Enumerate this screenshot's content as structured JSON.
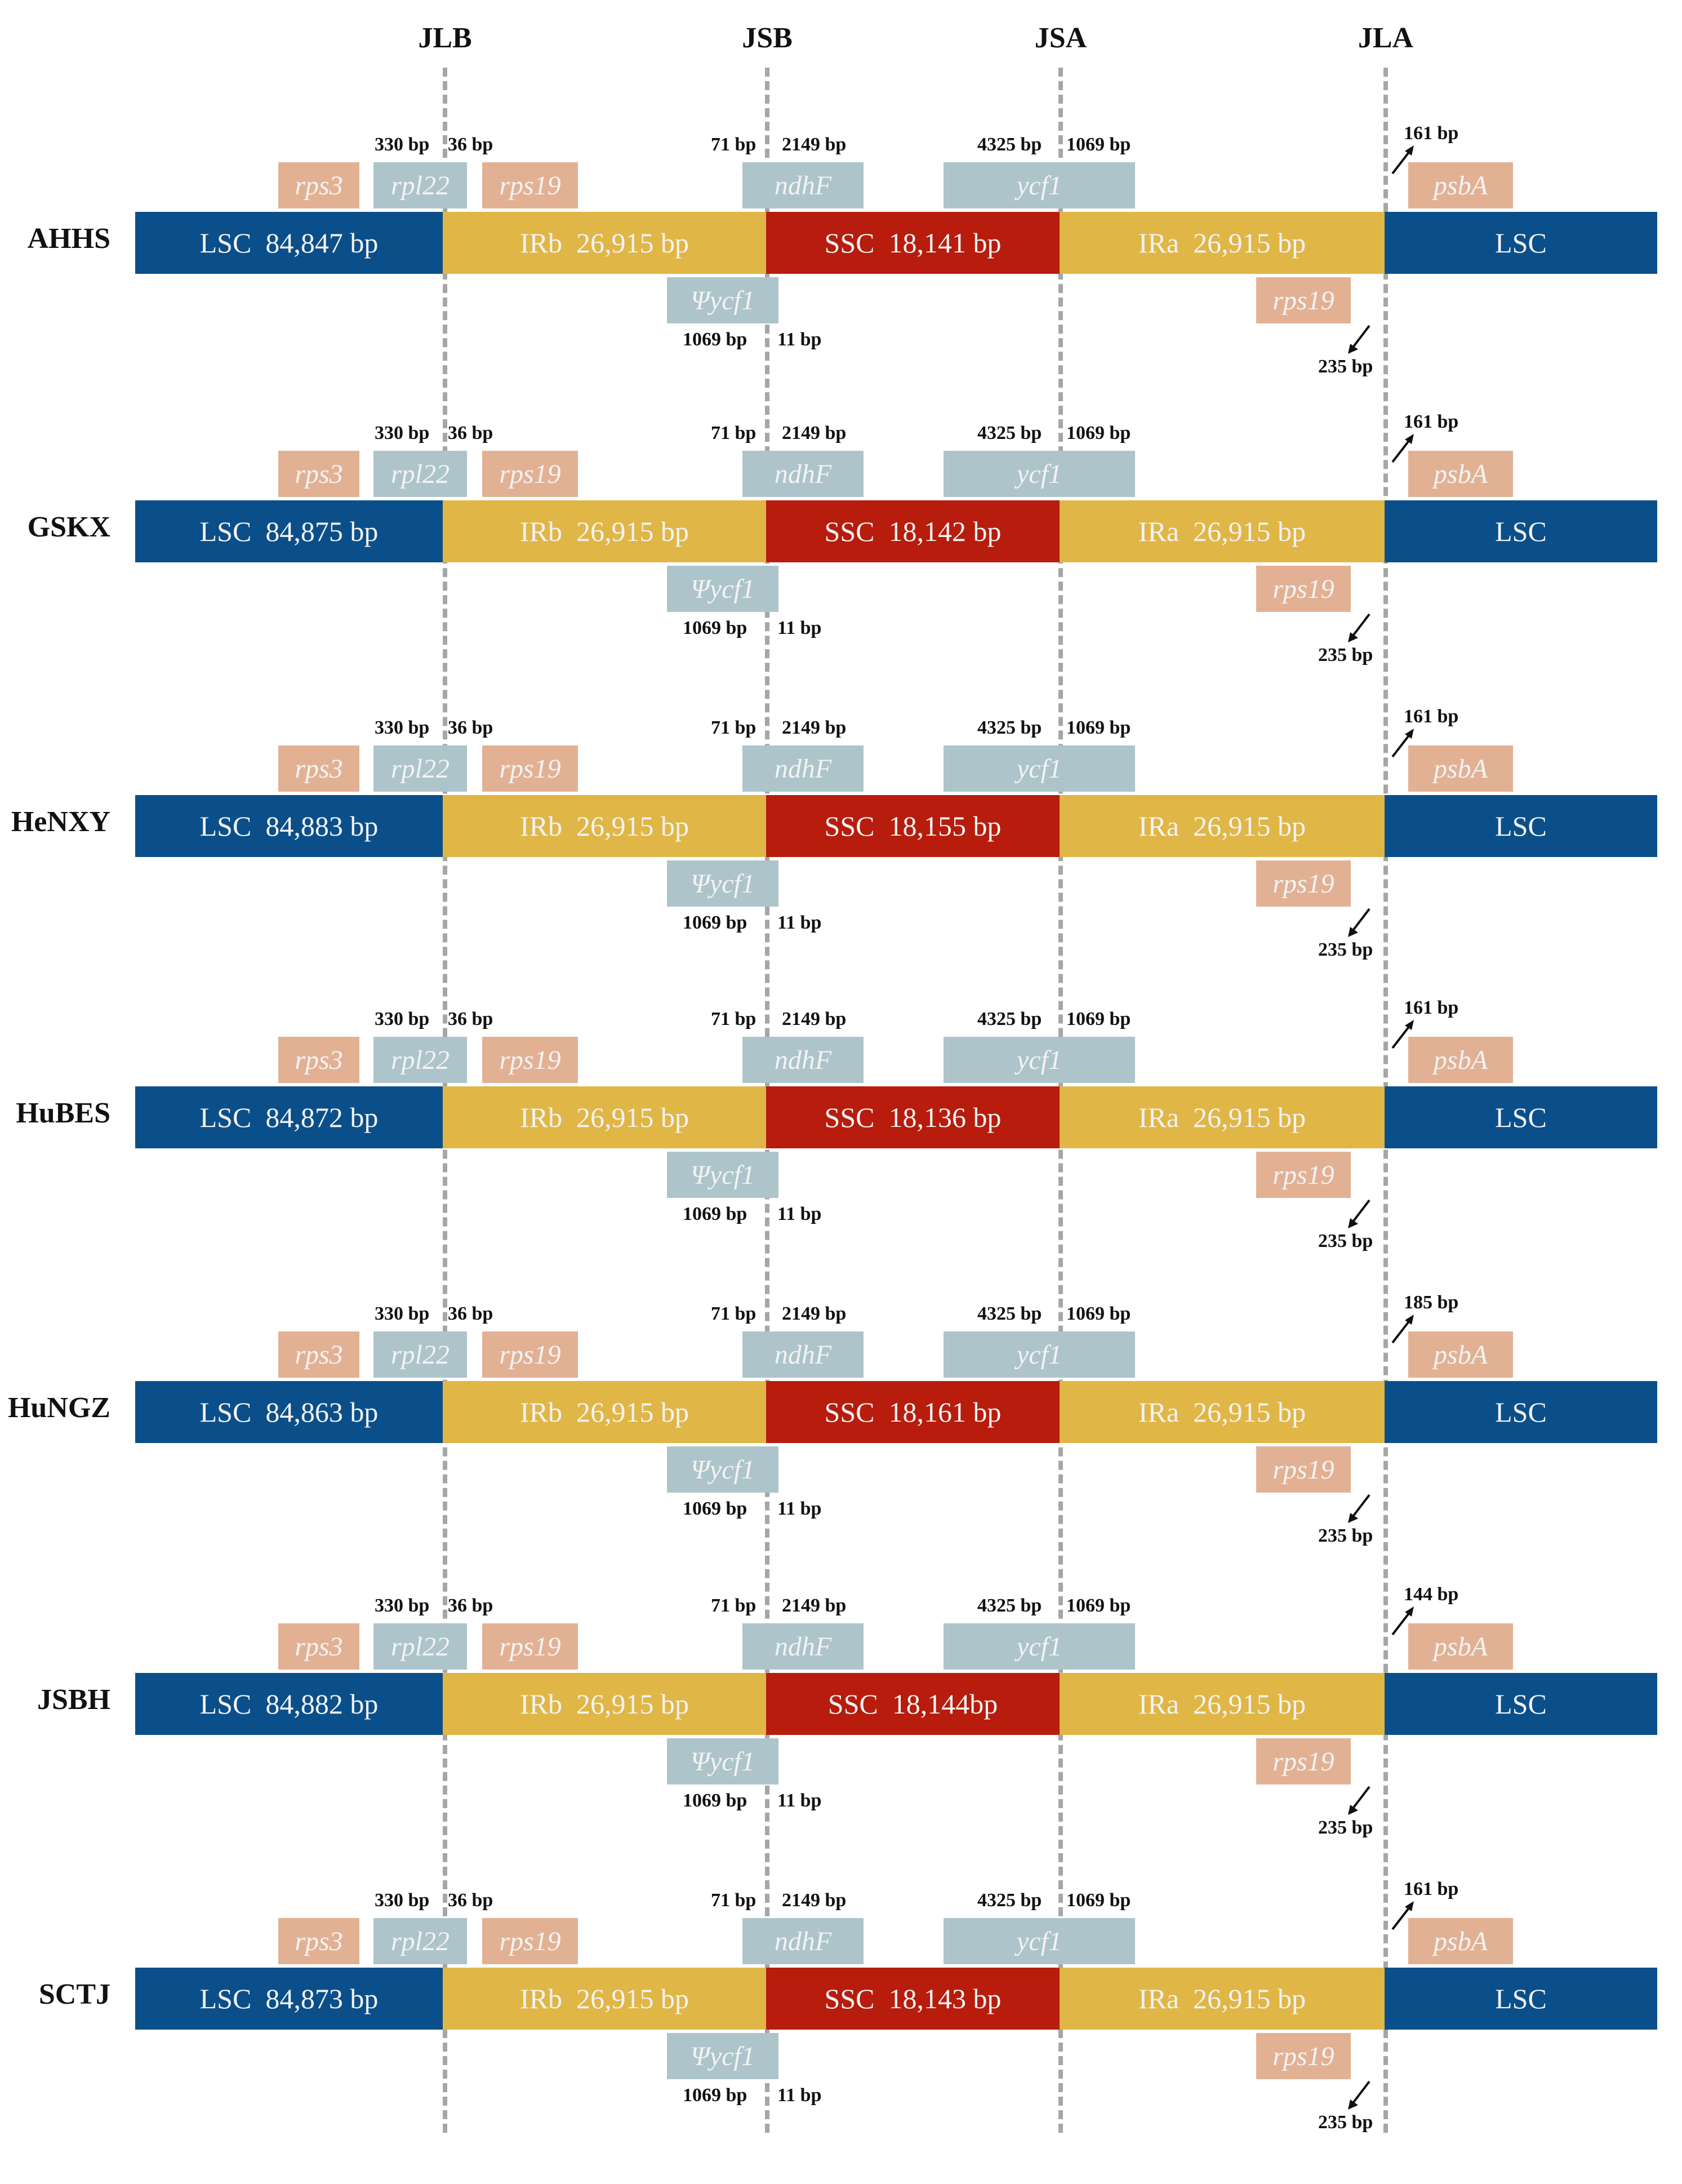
{
  "junctions": [
    {
      "id": "jlb",
      "label": "JLB"
    },
    {
      "id": "jsb",
      "label": "JSB"
    },
    {
      "id": "jsa",
      "label": "JSA"
    },
    {
      "id": "jla",
      "label": "JLA"
    }
  ],
  "colors": {
    "lsc": "#0b4f8a",
    "ir": "#e0b646",
    "ssc": "#b71c0c",
    "gene_blue": "#adc4cb",
    "gene_salmon": "#e2b194",
    "dash": "#a6a6a6"
  },
  "genes": {
    "rps3": "rps3",
    "rpl22": "rpl22",
    "rps19_top": "rps19",
    "ndhF": "ndhF",
    "ycf1": "ycf1",
    "psbA": "psbA",
    "psi_ycf1": "Ψycf1",
    "rps19_bottom": "rps19"
  },
  "region_labels": {
    "lsc_prefix": "LSC",
    "lsc_end": "LSC",
    "irb": "IRb  26,915 bp",
    "ira": "IRa  26,915 bp"
  },
  "distances": {
    "rpl22_left": "330 bp",
    "rpl22_right": "36 bp",
    "ndhF_left": "71 bp",
    "ndhF_right": "2149 bp",
    "ycf1_left": "4325 bp",
    "ycf1_right": "1069 bp",
    "psi_ycf1_left": "1069 bp",
    "psi_ycf1_right": "11 bp",
    "rps19_bottom": "235 bp"
  },
  "samples": [
    {
      "name": "AHHS",
      "lsc": "LSC  84,847 bp",
      "ssc": "SSC  18,141 bp",
      "psbA_bp": "161 bp"
    },
    {
      "name": "GSKX",
      "lsc": "LSC  84,875 bp",
      "ssc": "SSC  18,142 bp",
      "psbA_bp": "161 bp"
    },
    {
      "name": "HeNXY",
      "lsc": "LSC  84,883 bp",
      "ssc": "SSC  18,155 bp",
      "psbA_bp": "161 bp"
    },
    {
      "name": "HuBES",
      "lsc": "LSC  84,872 bp",
      "ssc": "SSC  18,136 bp",
      "psbA_bp": "161 bp"
    },
    {
      "name": "HuNGZ",
      "lsc": "LSC  84,863 bp",
      "ssc": "SSC  18,161 bp",
      "psbA_bp": "185 bp"
    },
    {
      "name": "JSBH",
      "lsc": "LSC  84,882 bp",
      "ssc": "SSC  18,144bp",
      "psbA_bp": "144 bp"
    },
    {
      "name": "SCTJ",
      "lsc": "LSC  84,873 bp",
      "ssc": "SSC  18,143 bp",
      "psbA_bp": "161 bp"
    }
  ]
}
